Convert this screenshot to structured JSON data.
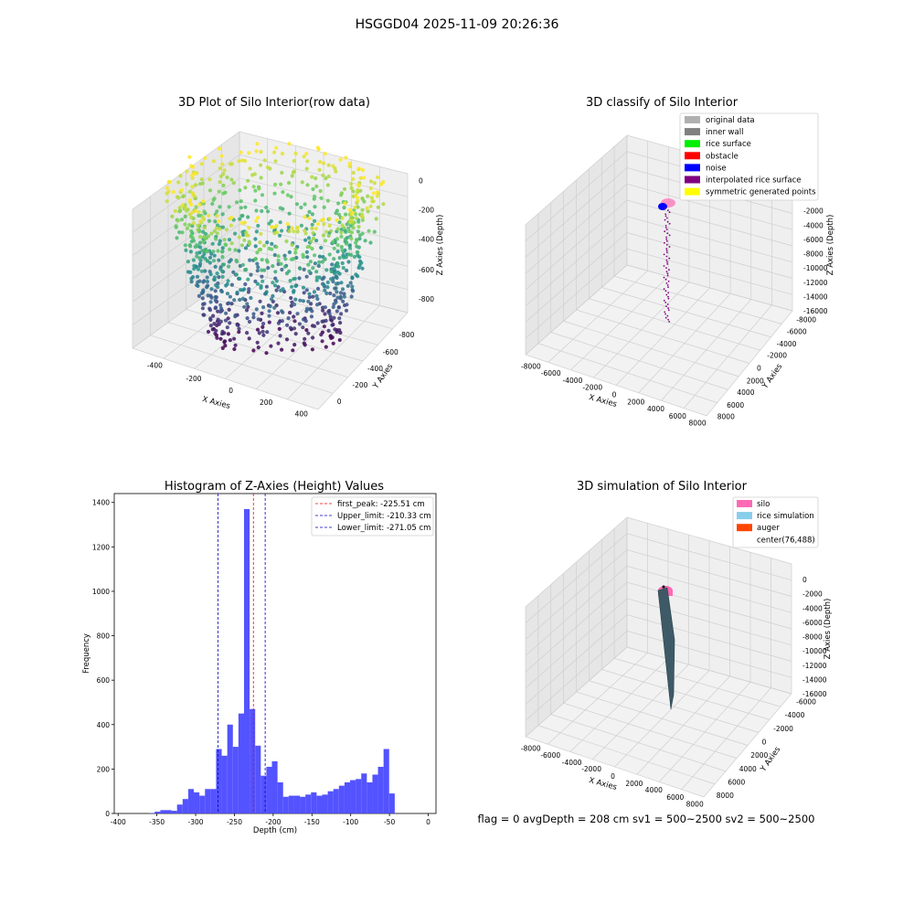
{
  "suptitle": "HSGGD04 2025-11-09 20:26:36",
  "footer": "flag = 0     avgDepth = 208 cm  sv1 = 500~2500  sv2 = 500~2500",
  "chart_data": [
    {
      "type": "scatter",
      "subtype": "3d",
      "title": "3D Plot of Silo Interior(row data)",
      "xlabel": "X Axies",
      "ylabel": "Y Axies",
      "zlabel": "Z Axies (Depth)",
      "xticks": [
        "-400",
        "-200",
        "0",
        "200",
        "400"
      ],
      "yticks": [
        "0",
        "-200",
        "-400",
        "-600",
        "-800"
      ],
      "zticks": [
        "0",
        "-200",
        "-400",
        "-600",
        "-800"
      ],
      "xlim": [
        -450,
        450
      ],
      "ylim": [
        -900,
        100
      ],
      "zlim": [
        -900,
        0
      ],
      "colormap": [
        "#440154",
        "#3b528b",
        "#21918c",
        "#5ec962",
        "#fde725"
      ],
      "description_points": "ring of points from z≈-900 (purple) up to z≈0 (yellow)"
    },
    {
      "type": "scatter",
      "subtype": "3d",
      "title": "3D classify of Silo Interior",
      "xlabel": "X Axies",
      "ylabel": "Y Axies",
      "zlabel": "Z Axies (Depth)",
      "xticks": [
        "-8000",
        "-6000",
        "-4000",
        "-2000",
        "0",
        "2000",
        "4000",
        "6000",
        "8000"
      ],
      "yticks": [
        "8000",
        "6000",
        "4000",
        "2000",
        "0",
        "-2000",
        "-4000",
        "-6000",
        "-8000"
      ],
      "zticks": [
        "0",
        "-2000",
        "-4000",
        "-6000",
        "-8000",
        "-10000",
        "-12000",
        "-14000",
        "-16000"
      ],
      "legend": [
        {
          "label": "original data",
          "color": "#b0b0b0"
        },
        {
          "label": "inner wall",
          "color": "#808080"
        },
        {
          "label": "rice surface",
          "color": "#00ee00"
        },
        {
          "label": "obstacle",
          "color": "#ff0000"
        },
        {
          "label": "noise",
          "color": "#0000ff"
        },
        {
          "label": "interpolated rice surface",
          "color": "#800080"
        },
        {
          "label": "symmetric generated points",
          "color": "#ffff00"
        }
      ]
    },
    {
      "type": "bar",
      "subtype": "histogram",
      "title": "Histogram of Z-Axies (Height) Values",
      "xlabel": "Depth (cm)",
      "ylabel": "Frequency",
      "xlim": [
        -405,
        10
      ],
      "ylim": [
        0,
        1440
      ],
      "xticks": [
        -400,
        -350,
        -300,
        -250,
        -200,
        -150,
        -100,
        -50,
        0
      ],
      "yticks": [
        0,
        200,
        400,
        600,
        800,
        1000,
        1200,
        1400
      ],
      "bar_color": "#4a4aff",
      "bins": {
        "start": -360,
        "width": 7.2,
        "values": [
          2,
          8,
          15,
          15,
          12,
          40,
          65,
          110,
          95,
          80,
          110,
          110,
          290,
          260,
          400,
          300,
          450,
          1370,
          470,
          305,
          170,
          210,
          235,
          140,
          75,
          80,
          80,
          75,
          85,
          95,
          80,
          85,
          100,
          110,
          125,
          140,
          150,
          155,
          180,
          140,
          175,
          210,
          290,
          90
        ]
      },
      "vlines": [
        {
          "label": "first_peak: -225.51 cm",
          "x": -225.51,
          "color": "#ff0000"
        },
        {
          "label": "Upper_limit: -210.33 cm",
          "x": -210.33,
          "color": "#0000c8"
        },
        {
          "label": "Lower_limit: -271.05 cm",
          "x": -271.05,
          "color": "#0000c8"
        }
      ],
      "legend_position": "top-right"
    },
    {
      "type": "scatter",
      "subtype": "3d-surface",
      "title": "3D simulation of Silo Interior",
      "xlabel": "X Axies",
      "ylabel": "Y Axies",
      "zlabel": "Z Axies (Depth)",
      "xticks": [
        "-8000",
        "-6000",
        "-4000",
        "-2000",
        "0",
        "2000",
        "4000",
        "6000",
        "8000"
      ],
      "yticks": [
        "8000",
        "6000",
        "4000",
        "2000",
        "0",
        "-2000",
        "-4000",
        "-6000"
      ],
      "zticks": [
        "0",
        "-2000",
        "-4000",
        "-6000",
        "-8000",
        "-10000",
        "-12000",
        "-14000",
        "-16000"
      ],
      "legend": [
        {
          "label": "silo",
          "color": "#ff69b4"
        },
        {
          "label": "rice simulation",
          "color": "#87ceeb"
        },
        {
          "label": "auger",
          "color": "#ff4500"
        },
        {
          "label": "center(76,488)",
          "color": ""
        }
      ]
    }
  ]
}
